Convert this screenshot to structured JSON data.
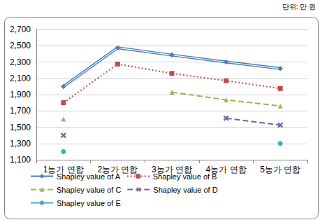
{
  "chart_data": {
    "type": "line",
    "annotation": "단위: 만 원",
    "categories": [
      "1농가 연합",
      "2농가 연합",
      "3농가 연합",
      "4농가 연합",
      "5농가 연합"
    ],
    "series": [
      {
        "name": "Shapley value of A",
        "color": "#4a7ebb",
        "marker": "diamond",
        "line_style": "double",
        "values": [
          2000,
          2475,
          2385,
          2300,
          2220
        ]
      },
      {
        "name": "Shapley value of B",
        "color": "#be4b48",
        "marker": "square",
        "line_style": "dotted",
        "values": [
          1800,
          2275,
          2160,
          2070,
          1975
        ]
      },
      {
        "name": "Shapley value of C",
        "color": "#98b954",
        "marker": "triangle",
        "line_style": "dashed",
        "values": [
          1600,
          null,
          1930,
          1835,
          1760
        ]
      },
      {
        "name": "Shapley value of D",
        "color": "#7d60a0",
        "marker": "x",
        "line_style": "dashed",
        "values": [
          1400,
          null,
          null,
          1610,
          1525
        ]
      },
      {
        "name": "Shapley value of E",
        "color": "#46aac5",
        "marker": "circle",
        "line_style": "solid",
        "values": [
          1200,
          null,
          null,
          null,
          1300
        ]
      }
    ],
    "ylim": [
      1100,
      2700
    ],
    "yticks": [
      1100,
      1300,
      1500,
      1700,
      1900,
      2100,
      2300,
      2500,
      2700
    ],
    "grid": true,
    "legend": "bottom"
  }
}
